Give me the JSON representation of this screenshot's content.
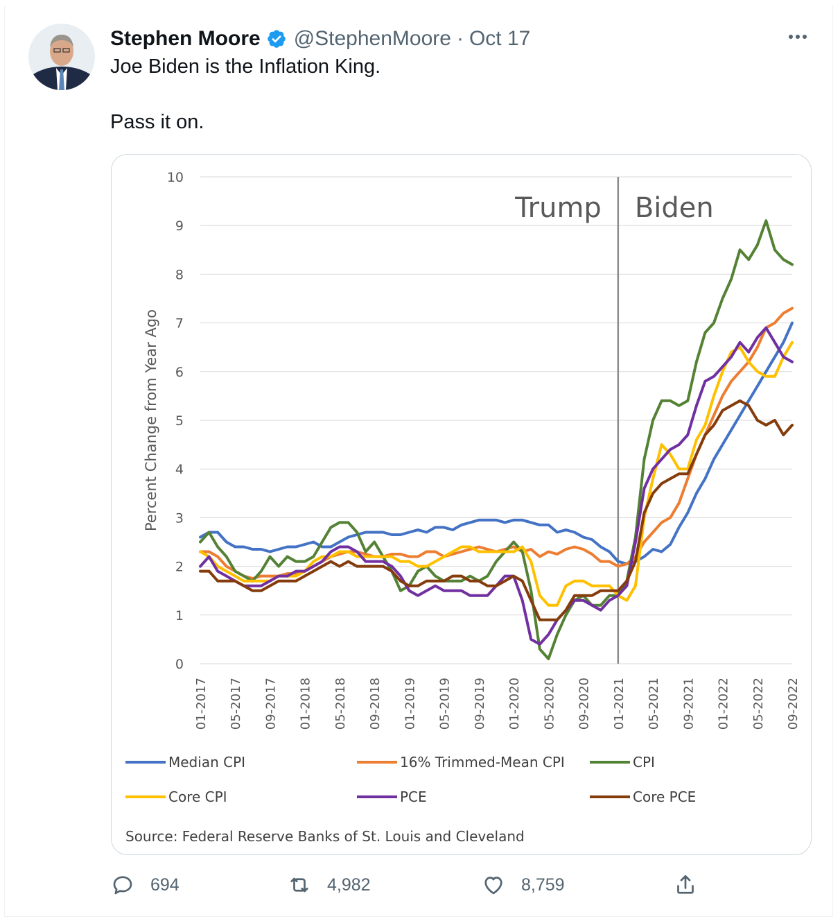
{
  "tweet": {
    "author_name": "Stephen Moore",
    "handle": "@StephenMoore",
    "separator": "·",
    "date": "Oct 17",
    "line1": "Joe Biden is the Inflation King.",
    "line2": "Pass it on.",
    "replies": "694",
    "retweets": "4,982",
    "likes": "8,759"
  },
  "colors": {
    "verified": "#1d9bf0",
    "muted": "#536471"
  },
  "chart_data": {
    "type": "line",
    "ylabel": "Percent Change from Year Ago",
    "ylim": [
      0,
      10
    ],
    "yticks": [
      "0",
      "1",
      "2",
      "3",
      "4",
      "5",
      "6",
      "7",
      "8",
      "9",
      "10"
    ],
    "xtick_labels": [
      "01-2017",
      "05-2017",
      "09-2017",
      "01-2018",
      "05-2018",
      "09-2018",
      "01-2019",
      "05-2019",
      "09-2019",
      "01-2020",
      "05-2020",
      "09-2020",
      "01-2021",
      "05-2021",
      "09-2021",
      "01-2022",
      "05-2022",
      "09-2022"
    ],
    "x_start": "01-2017",
    "x_end": "09-2022",
    "divider_at": "01-2021",
    "region_labels": [
      "Trump",
      "Biden"
    ],
    "source": "Source: Federal Reserve Banks of St. Louis and Cleveland",
    "legend": [
      "Median CPI",
      "16% Trimmed-Mean CPI",
      "CPI",
      "Core CPI",
      "PCE",
      "Core PCE"
    ],
    "series": [
      {
        "name": "Median CPI",
        "color": "#4472c4",
        "values": [
          2.6,
          2.7,
          2.7,
          2.5,
          2.4,
          2.4,
          2.35,
          2.35,
          2.3,
          2.35,
          2.4,
          2.4,
          2.45,
          2.5,
          2.4,
          2.4,
          2.5,
          2.6,
          2.65,
          2.7,
          2.7,
          2.7,
          2.65,
          2.65,
          2.7,
          2.75,
          2.7,
          2.8,
          2.8,
          2.75,
          2.85,
          2.9,
          2.95,
          2.95,
          2.95,
          2.9,
          2.95,
          2.95,
          2.9,
          2.85,
          2.85,
          2.7,
          2.75,
          2.7,
          2.6,
          2.55,
          2.4,
          2.3,
          2.1,
          2.05,
          2.1,
          2.2,
          2.35,
          2.3,
          2.45,
          2.8,
          3.1,
          3.5,
          3.8,
          4.2,
          4.5,
          4.8,
          5.1,
          5.4,
          5.7,
          6.0,
          6.3,
          6.6,
          7.0
        ]
      },
      {
        "name": "16% Trimmed-Mean CPI",
        "color": "#ed7d31",
        "values": [
          2.3,
          2.3,
          2.2,
          2.0,
          1.9,
          1.8,
          1.75,
          1.8,
          1.8,
          1.8,
          1.85,
          1.85,
          1.9,
          2.0,
          2.1,
          2.2,
          2.25,
          2.3,
          2.3,
          2.25,
          2.2,
          2.2,
          2.25,
          2.25,
          2.2,
          2.2,
          2.3,
          2.3,
          2.2,
          2.25,
          2.3,
          2.35,
          2.4,
          2.35,
          2.3,
          2.35,
          2.4,
          2.3,
          2.35,
          2.2,
          2.3,
          2.25,
          2.35,
          2.4,
          2.35,
          2.25,
          2.1,
          2.1,
          2.0,
          2.05,
          2.2,
          2.5,
          2.7,
          2.9,
          3.0,
          3.3,
          3.8,
          4.3,
          4.7,
          5.1,
          5.5,
          5.8,
          6.0,
          6.2,
          6.5,
          6.9,
          7.0,
          7.2,
          7.3
        ]
      },
      {
        "name": "CPI",
        "color": "#548235",
        "values": [
          2.5,
          2.7,
          2.4,
          2.2,
          1.9,
          1.8,
          1.7,
          1.9,
          2.2,
          2.0,
          2.2,
          2.1,
          2.1,
          2.2,
          2.5,
          2.8,
          2.9,
          2.9,
          2.7,
          2.3,
          2.5,
          2.2,
          1.9,
          1.5,
          1.6,
          1.9,
          2.0,
          1.8,
          1.7,
          1.7,
          1.7,
          1.8,
          1.7,
          1.8,
          2.1,
          2.3,
          2.5,
          2.3,
          1.5,
          0.3,
          0.1,
          0.6,
          1.0,
          1.3,
          1.4,
          1.2,
          1.2,
          1.4,
          1.4,
          1.7,
          2.6,
          4.2,
          5.0,
          5.4,
          5.4,
          5.3,
          5.4,
          6.2,
          6.8,
          7.0,
          7.5,
          7.9,
          8.5,
          8.3,
          8.6,
          9.1,
          8.5,
          8.3,
          8.2
        ]
      },
      {
        "name": "Core CPI",
        "color": "#ffc000",
        "values": [
          2.3,
          2.2,
          2.0,
          1.9,
          1.8,
          1.7,
          1.7,
          1.7,
          1.7,
          1.8,
          1.8,
          1.8,
          1.9,
          2.1,
          2.2,
          2.2,
          2.3,
          2.3,
          2.2,
          2.2,
          2.2,
          2.2,
          2.2,
          2.1,
          2.1,
          2.0,
          2.0,
          2.1,
          2.2,
          2.3,
          2.4,
          2.4,
          2.3,
          2.3,
          2.3,
          2.3,
          2.3,
          2.4,
          2.1,
          1.4,
          1.2,
          1.2,
          1.6,
          1.7,
          1.7,
          1.6,
          1.6,
          1.6,
          1.4,
          1.3,
          1.6,
          3.0,
          3.8,
          4.5,
          4.3,
          4.0,
          4.0,
          4.6,
          4.9,
          5.5,
          6.0,
          6.4,
          6.5,
          6.2,
          6.0,
          5.9,
          5.9,
          6.3,
          6.6
        ]
      },
      {
        "name": "PCE",
        "color": "#7030a0",
        "values": [
          2.0,
          2.2,
          1.9,
          1.8,
          1.7,
          1.6,
          1.6,
          1.6,
          1.7,
          1.8,
          1.8,
          1.9,
          1.9,
          2.0,
          2.1,
          2.3,
          2.4,
          2.4,
          2.3,
          2.1,
          2.1,
          2.1,
          2.0,
          1.8,
          1.5,
          1.4,
          1.5,
          1.6,
          1.5,
          1.5,
          1.5,
          1.4,
          1.4,
          1.4,
          1.6,
          1.8,
          1.8,
          1.3,
          0.5,
          0.4,
          0.6,
          0.9,
          1.1,
          1.3,
          1.3,
          1.2,
          1.1,
          1.3,
          1.4,
          1.6,
          2.5,
          3.6,
          4.0,
          4.2,
          4.4,
          4.5,
          4.7,
          5.3,
          5.8,
          5.9,
          6.1,
          6.3,
          6.6,
          6.4,
          6.7,
          6.9,
          6.6,
          6.3,
          6.2
        ]
      },
      {
        "name": "Core PCE",
        "color": "#843c0c",
        "values": [
          1.9,
          1.9,
          1.7,
          1.7,
          1.7,
          1.6,
          1.5,
          1.5,
          1.6,
          1.7,
          1.7,
          1.7,
          1.8,
          1.9,
          2.0,
          2.1,
          2.0,
          2.1,
          2.0,
          2.0,
          2.0,
          2.0,
          1.9,
          1.7,
          1.6,
          1.6,
          1.7,
          1.7,
          1.7,
          1.8,
          1.8,
          1.7,
          1.7,
          1.6,
          1.6,
          1.7,
          1.8,
          1.7,
          1.3,
          0.9,
          0.9,
          0.9,
          1.1,
          1.4,
          1.4,
          1.4,
          1.5,
          1.5,
          1.5,
          1.7,
          2.1,
          3.1,
          3.5,
          3.7,
          3.8,
          3.9,
          3.9,
          4.3,
          4.7,
          4.9,
          5.2,
          5.3,
          5.4,
          5.3,
          5.0,
          4.9,
          5.0,
          4.7,
          4.9
        ]
      }
    ]
  }
}
